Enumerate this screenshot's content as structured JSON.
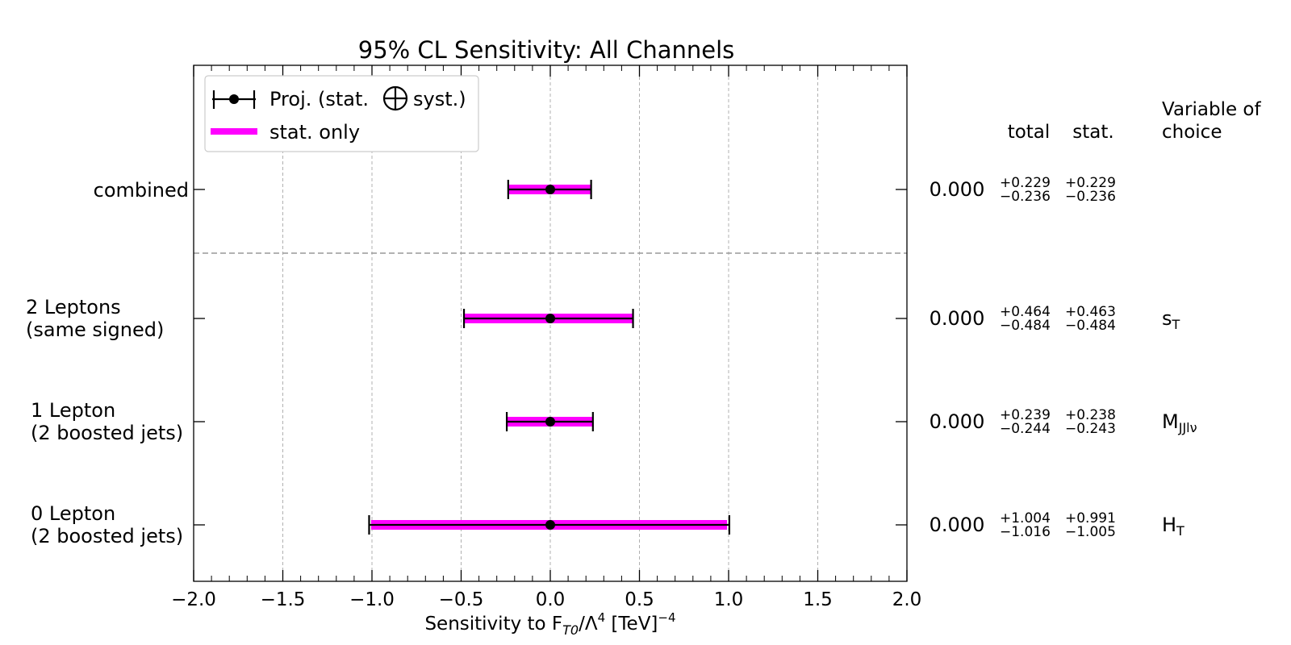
{
  "chart_data": {
    "type": "errorbar",
    "title": "95% CL Sensitivity: All Channels",
    "xlabel": {
      "prefix": "Sensitivity to F",
      "sub": "T0",
      "mid": "/Λ",
      "sup1": "4",
      "suffix": " [TeV]",
      "sup2": "−4"
    },
    "xlim": [
      -2.0,
      2.0
    ],
    "xticks": [
      "−2.0",
      "−1.5",
      "−1.0",
      "−0.5",
      "0.0",
      "0.5",
      "1.0",
      "1.5",
      "2.0"
    ],
    "xtick_values": [
      -2.0,
      -1.5,
      -1.0,
      -0.5,
      0.0,
      0.5,
      1.0,
      1.5,
      2.0
    ],
    "grid": "vertical dashed",
    "legend": {
      "position": "top-left",
      "entries": [
        {
          "label_before": "Proj. (stat.",
          "label_after": "syst.)"
        },
        {
          "label": "stat. only"
        }
      ]
    },
    "column_headers": {
      "total": "total",
      "stat": "stat.",
      "variable": [
        "Variable of",
        "choice"
      ]
    },
    "rows": [
      {
        "label": [
          "combined"
        ],
        "central": 0.0,
        "central_text": "0.000",
        "total_plus": 0.229,
        "total_minus": 0.236,
        "stat_plus": 0.229,
        "stat_minus": 0.236,
        "total_plus_text": "+0.229",
        "total_minus_text": "−0.236",
        "stat_plus_text": "+0.229",
        "stat_minus_text": "−0.236",
        "variable": {
          "main": "",
          "sub": ""
        }
      },
      {
        "label": [
          "2 Leptons",
          "(same signed)"
        ],
        "central": 0.0,
        "central_text": "0.000",
        "total_plus": 0.464,
        "total_minus": 0.484,
        "stat_plus": 0.463,
        "stat_minus": 0.484,
        "total_plus_text": "+0.464",
        "total_minus_text": "−0.484",
        "stat_plus_text": "+0.463",
        "stat_minus_text": "−0.484",
        "variable": {
          "main": "s",
          "sub": "T"
        }
      },
      {
        "label": [
          "1 Lepton",
          "(2 boosted jets)"
        ],
        "central": 0.0,
        "central_text": "0.000",
        "total_plus": 0.239,
        "total_minus": 0.244,
        "stat_plus": 0.238,
        "stat_minus": 0.243,
        "total_plus_text": "+0.239",
        "total_minus_text": "−0.244",
        "stat_plus_text": "+0.238",
        "stat_minus_text": "−0.243",
        "variable": {
          "main": "M",
          "sub": "JJlν"
        }
      },
      {
        "label": [
          "0 Lepton",
          "(2 boosted jets)"
        ],
        "central": 0.0,
        "central_text": "0.000",
        "total_plus": 1.004,
        "total_minus": 1.016,
        "stat_plus": 0.991,
        "stat_minus": 1.005,
        "total_plus_text": "+1.004",
        "total_minus_text": "−1.016",
        "stat_plus_text": "+0.991",
        "stat_minus_text": "−1.005",
        "variable": {
          "main": "H",
          "sub": "T"
        }
      }
    ],
    "colors": {
      "stat_band": "#ff00ff",
      "total_bar": "#000000",
      "marker": "#000000",
      "grid": "#b0b0b0",
      "separator": "#999999"
    }
  }
}
